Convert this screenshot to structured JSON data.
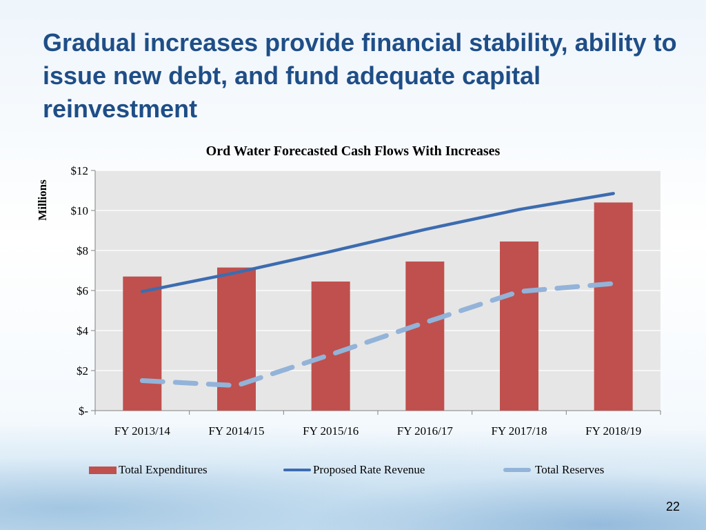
{
  "slide": {
    "title": "Gradual increases provide financial stability, ability to issue new debt, and fund adequate capital reinvestment",
    "page_number": "22"
  },
  "colors": {
    "title": "#1f4e87",
    "expenditures": "#c0504d",
    "revenue": "#3c6cb0",
    "reserves": "#93b3d9",
    "plot_bg": "#e6e6e6"
  },
  "chart_data": {
    "type": "bar",
    "title": "Ord Water Forecasted Cash Flows With Increases",
    "xlabel": "",
    "ylabel": "Millions",
    "categories": [
      "FY 2013/14",
      "FY 2014/15",
      "FY 2015/16",
      "FY 2016/17",
      "FY 2017/18",
      "FY 2018/19"
    ],
    "ylim": [
      0,
      12
    ],
    "yticks": [
      0,
      2,
      4,
      6,
      8,
      10,
      12
    ],
    "ytick_labels": [
      "$-",
      "$2",
      "$4",
      "$6",
      "$8",
      "$10",
      "$12"
    ],
    "grid": true,
    "legend_position": "bottom",
    "series": [
      {
        "name": "Total Expenditures",
        "type": "bar",
        "values": [
          6.7,
          7.15,
          6.45,
          7.45,
          8.45,
          10.4
        ]
      },
      {
        "name": "Proposed Rate Revenue",
        "type": "line",
        "values": [
          5.95,
          6.9,
          7.95,
          9.05,
          10.05,
          10.85
        ]
      },
      {
        "name": "Total Reserves",
        "type": "dashed-line",
        "values": [
          1.5,
          1.25,
          2.8,
          4.4,
          5.95,
          6.35
        ]
      }
    ]
  }
}
